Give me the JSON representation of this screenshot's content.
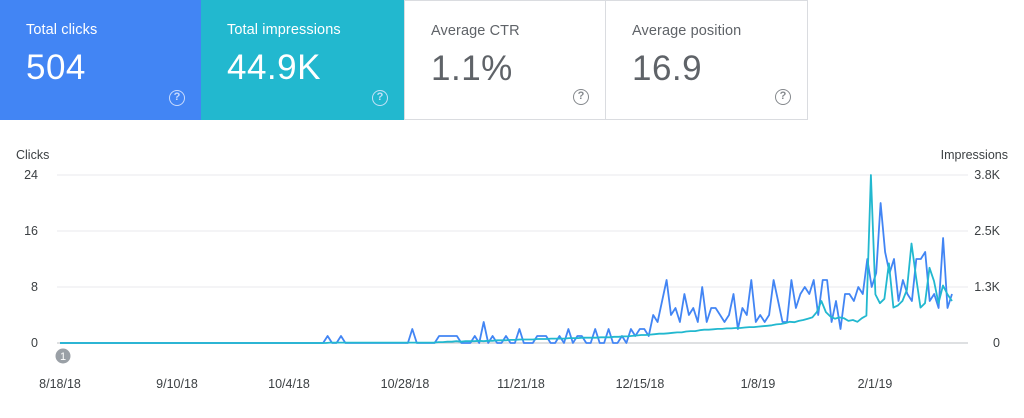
{
  "metrics": [
    {
      "key": "clicks",
      "label": "Total clicks",
      "value": "504",
      "color": "#4285f4",
      "help_icon": "help-icon"
    },
    {
      "key": "impressions",
      "label": "Total impressions",
      "value": "44.9K",
      "color": "#22b8cf",
      "help_icon": "help-icon"
    },
    {
      "key": "ctr",
      "label": "Average CTR",
      "value": "1.1%",
      "help_icon": "help-icon"
    },
    {
      "key": "position",
      "label": "Average position",
      "value": "16.9",
      "help_icon": "help-icon"
    }
  ],
  "annotation": {
    "label": "1"
  },
  "chart_data": {
    "type": "line",
    "left_axis": {
      "title": "Clicks",
      "ticks": [
        "24",
        "16",
        "8",
        "0"
      ],
      "range": [
        0,
        24
      ]
    },
    "right_axis": {
      "title": "Impressions",
      "ticks": [
        "3.8K",
        "2.5K",
        "1.3K",
        "0"
      ],
      "range": [
        0,
        3800
      ]
    },
    "x_ticks": [
      "8/18/18",
      "9/10/18",
      "10/4/18",
      "10/28/18",
      "11/21/18",
      "12/15/18",
      "1/8/19",
      "2/1/19"
    ],
    "grid": true,
    "series": [
      {
        "name": "Clicks",
        "axis": "left",
        "color": "#4285f4",
        "values": [
          0,
          0,
          0,
          0,
          0,
          0,
          0,
          0,
          0,
          0,
          0,
          0,
          0,
          0,
          0,
          0,
          0,
          0,
          0,
          0,
          0,
          0,
          0,
          0,
          0,
          0,
          0,
          0,
          0,
          0,
          0,
          0,
          0,
          0,
          0,
          0,
          0,
          0,
          0,
          0,
          0,
          0,
          0,
          0,
          0,
          0,
          0,
          0,
          0,
          0,
          0,
          0,
          0,
          0,
          0,
          0,
          0,
          0,
          0,
          0,
          1,
          0,
          0,
          1,
          0,
          0,
          0,
          0,
          0,
          0,
          0,
          0,
          0,
          0,
          0,
          0,
          0,
          0,
          0,
          2,
          0,
          0,
          0,
          0,
          0,
          1,
          1,
          1,
          1,
          1,
          0,
          0,
          0,
          1,
          0,
          3,
          0,
          1,
          0,
          0,
          1,
          0,
          0,
          2,
          0,
          0,
          0,
          1,
          1,
          1,
          0,
          0,
          1,
          0,
          2,
          0,
          1,
          1,
          0,
          0,
          2,
          0,
          0,
          2,
          0,
          0,
          1,
          0,
          2,
          1,
          2,
          2,
          1,
          4,
          3,
          6,
          9,
          4,
          5,
          3,
          7,
          4,
          5,
          3,
          8,
          3,
          5,
          5,
          4,
          3,
          4,
          7,
          2,
          5,
          4,
          9,
          3,
          4,
          3,
          4,
          9,
          6,
          3,
          3,
          9,
          5,
          7,
          8,
          7,
          9,
          4,
          9,
          9,
          3,
          6,
          2,
          7,
          7,
          6,
          8,
          7,
          12,
          8,
          10,
          20,
          13,
          10,
          12,
          6,
          9,
          7,
          6,
          12,
          12,
          13,
          6,
          7,
          5,
          15,
          5,
          7
        ]
      },
      {
        "name": "Impressions",
        "axis": "right",
        "color": "#22b8cf",
        "values": [
          0,
          0,
          0,
          0,
          0,
          0,
          0,
          0,
          0,
          0,
          0,
          0,
          0,
          0,
          0,
          0,
          0,
          0,
          0,
          0,
          0,
          0,
          0,
          0,
          0,
          0,
          0,
          0,
          0,
          0,
          0,
          0,
          0,
          0,
          0,
          0,
          0,
          0,
          0,
          0,
          0,
          0,
          0,
          0,
          0,
          0,
          0,
          0,
          0,
          0,
          0,
          0,
          0,
          0,
          0,
          0,
          0,
          0,
          0,
          0,
          10,
          10,
          10,
          10,
          10,
          10,
          10,
          10,
          10,
          10,
          10,
          10,
          10,
          10,
          10,
          10,
          10,
          10,
          10,
          10,
          10,
          10,
          10,
          10,
          20,
          20,
          30,
          30,
          40,
          30,
          40,
          40,
          40,
          50,
          40,
          50,
          50,
          60,
          60,
          60,
          70,
          70,
          80,
          80,
          80,
          80,
          90,
          90,
          90,
          100,
          100,
          100,
          100,
          110,
          110,
          110,
          120,
          120,
          120,
          120,
          130,
          130,
          130,
          140,
          140,
          150,
          150,
          160,
          170,
          180,
          180,
          190,
          200,
          210,
          210,
          220,
          230,
          240,
          240,
          260,
          270,
          270,
          290,
          300,
          300,
          310,
          320,
          320,
          330,
          330,
          340,
          340,
          350,
          360,
          360,
          370,
          380,
          390,
          400,
          420,
          430,
          450,
          480,
          470,
          500,
          520,
          550,
          580,
          700,
          950,
          700,
          600,
          550,
          580,
          560,
          500,
          520,
          480,
          560,
          620,
          3800,
          1100,
          900,
          1000,
          1800,
          800,
          850,
          950,
          1200,
          2250,
          1500,
          800,
          900,
          1700,
          1400,
          900,
          1300,
          1100,
          950
        ]
      }
    ]
  }
}
